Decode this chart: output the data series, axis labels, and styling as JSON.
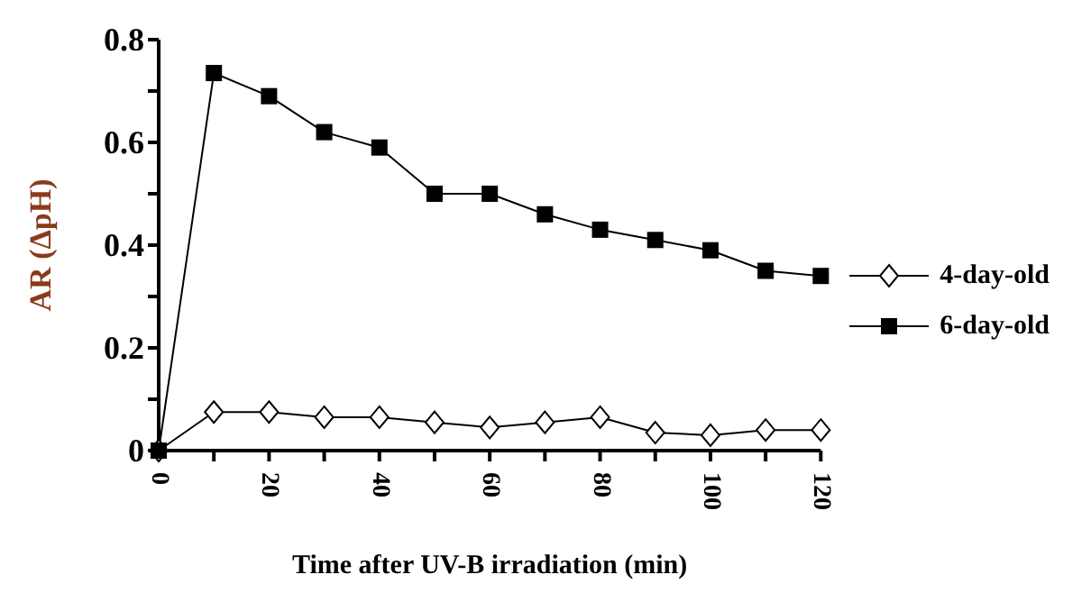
{
  "chart_data": {
    "type": "line",
    "xlabel": "Time after UV-B irradiation (min)",
    "ylabel": "AR (ΔpH)",
    "x": [
      0,
      10,
      20,
      30,
      40,
      50,
      60,
      70,
      80,
      90,
      100,
      110,
      120
    ],
    "series": [
      {
        "name": "4-day-old",
        "color": "#000000",
        "marker": "diamond",
        "values": [
          0,
          0.075,
          0.075,
          0.065,
          0.065,
          0.055,
          0.045,
          0.055,
          0.065,
          0.035,
          0.03,
          0.04,
          0.04
        ]
      },
      {
        "name": "6-day-old",
        "color": "#000000",
        "marker": "square",
        "values": [
          0,
          0.735,
          0.69,
          0.62,
          0.59,
          0.5,
          0.5,
          0.46,
          0.43,
          0.41,
          0.39,
          0.35,
          0.34
        ]
      }
    ],
    "xlim": [
      0,
      120
    ],
    "xticks": [
      0,
      {
        "value": 10,
        "label": null
      },
      20,
      {
        "value": 30,
        "label": null
      },
      40,
      {
        "value": 50,
        "label": null
      },
      60,
      {
        "value": 70,
        "label": null
      },
      80,
      {
        "value": 90,
        "label": null
      },
      100,
      {
        "value": 110,
        "label": null
      },
      120
    ],
    "ylim": [
      0,
      0.8
    ],
    "yticks": [
      0,
      {
        "value": 0.1,
        "label": null
      },
      0.2,
      {
        "value": 0.3,
        "label": null
      },
      0.4,
      {
        "value": 0.5,
        "label": null
      },
      0.6,
      {
        "value": 0.7,
        "label": null
      },
      0.8
    ],
    "grid": false,
    "legend": "right",
    "line_style": "solid"
  }
}
